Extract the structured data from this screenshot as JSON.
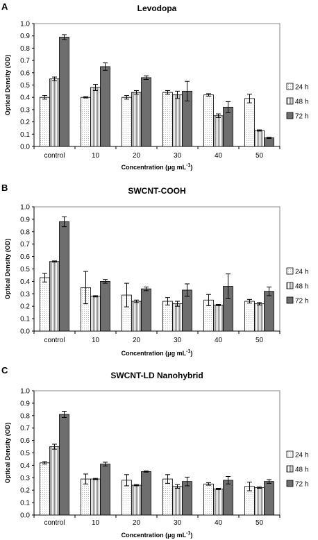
{
  "chart_data": [
    {
      "panel": "A",
      "type": "bar",
      "title": "Levodopa",
      "xlabel": "Concentration (μg mL",
      "xlabel_sup": "-1",
      "xlabel_end": ")",
      "ylabel": "Optical Density (OD)",
      "ylim": [
        0,
        1.0
      ],
      "yticks": [
        "0.0",
        "0.1",
        "0.2",
        "0.3",
        "0.4",
        "0.5",
        "0.6",
        "0.7",
        "0.8",
        "0.9",
        "1.0"
      ],
      "categories": [
        "control",
        "10",
        "20",
        "30",
        "40",
        "50"
      ],
      "legend_position": "right",
      "series": [
        {
          "name": "24 h",
          "values": [
            0.4,
            0.4,
            0.4,
            0.44,
            0.42,
            0.39
          ],
          "errors": [
            0.015,
            0.005,
            0.015,
            0.015,
            0.01,
            0.035
          ]
        },
        {
          "name": "48 h",
          "values": [
            0.55,
            0.48,
            0.44,
            0.42,
            0.25,
            0.13
          ],
          "errors": [
            0.015,
            0.025,
            0.015,
            0.03,
            0.015,
            0.005
          ]
        },
        {
          "name": "72 h",
          "values": [
            0.89,
            0.65,
            0.56,
            0.45,
            0.32,
            0.07
          ],
          "errors": [
            0.02,
            0.03,
            0.015,
            0.08,
            0.045,
            0.005
          ]
        }
      ]
    },
    {
      "panel": "B",
      "type": "bar",
      "title": "SWCNT-COOH",
      "xlabel": "Concentration (μg mL",
      "xlabel_sup": "-1",
      "xlabel_end": ")",
      "ylabel": "Optical Density (OD)",
      "ylim": [
        0,
        1.0
      ],
      "yticks": [
        "0.0",
        "0.1",
        "0.2",
        "0.3",
        "0.4",
        "0.5",
        "0.6",
        "0.7",
        "0.8",
        "0.9",
        "1.0"
      ],
      "categories": [
        "control",
        "10",
        "20",
        "30",
        "40",
        "50"
      ],
      "legend_position": "right",
      "series": [
        {
          "name": "24 h",
          "values": [
            0.43,
            0.35,
            0.29,
            0.24,
            0.25,
            0.24
          ],
          "errors": [
            0.035,
            0.13,
            0.095,
            0.03,
            0.045,
            0.015
          ]
        },
        {
          "name": "48 h",
          "values": [
            0.56,
            0.28,
            0.24,
            0.22,
            0.21,
            0.22
          ],
          "errors": [
            0.005,
            0.005,
            0.01,
            0.02,
            0.005,
            0.01
          ]
        },
        {
          "name": "72 h",
          "values": [
            0.88,
            0.4,
            0.34,
            0.33,
            0.36,
            0.32
          ],
          "errors": [
            0.04,
            0.015,
            0.015,
            0.05,
            0.1,
            0.035
          ]
        }
      ]
    },
    {
      "panel": "C",
      "type": "bar",
      "title": "SWCNT-LD Nanohybrid",
      "xlabel": "Concentration (μg mL",
      "xlabel_sup": "-1",
      "xlabel_end": ")",
      "ylabel": "Optical Density (OD)",
      "ylim": [
        0,
        1.0
      ],
      "yticks": [
        "0.0",
        "0.1",
        "0.2",
        "0.3",
        "0.4",
        "0.5",
        "0.6",
        "0.7",
        "0.8",
        "0.9",
        "1.0"
      ],
      "categories": [
        "control",
        "10",
        "20",
        "30",
        "40",
        "50"
      ],
      "legend_position": "right",
      "series": [
        {
          "name": "24 h",
          "values": [
            0.42,
            0.29,
            0.28,
            0.29,
            0.25,
            0.23
          ],
          "errors": [
            0.01,
            0.04,
            0.045,
            0.035,
            0.01,
            0.035
          ]
        },
        {
          "name": "48 h",
          "values": [
            0.55,
            0.29,
            0.24,
            0.23,
            0.21,
            0.22
          ],
          "errors": [
            0.02,
            0.005,
            0.005,
            0.015,
            0.005,
            0.005
          ]
        },
        {
          "name": "72 h",
          "values": [
            0.81,
            0.41,
            0.35,
            0.27,
            0.28,
            0.27
          ],
          "errors": [
            0.025,
            0.015,
            0.005,
            0.035,
            0.03,
            0.015
          ]
        }
      ]
    }
  ],
  "colors": {
    "series_24h_fill": "#ffffff",
    "series_48h_fill": "#c8c8c8",
    "series_72h_fill": "#6e6e6e",
    "axis": "#000000",
    "border": "#888888"
  }
}
